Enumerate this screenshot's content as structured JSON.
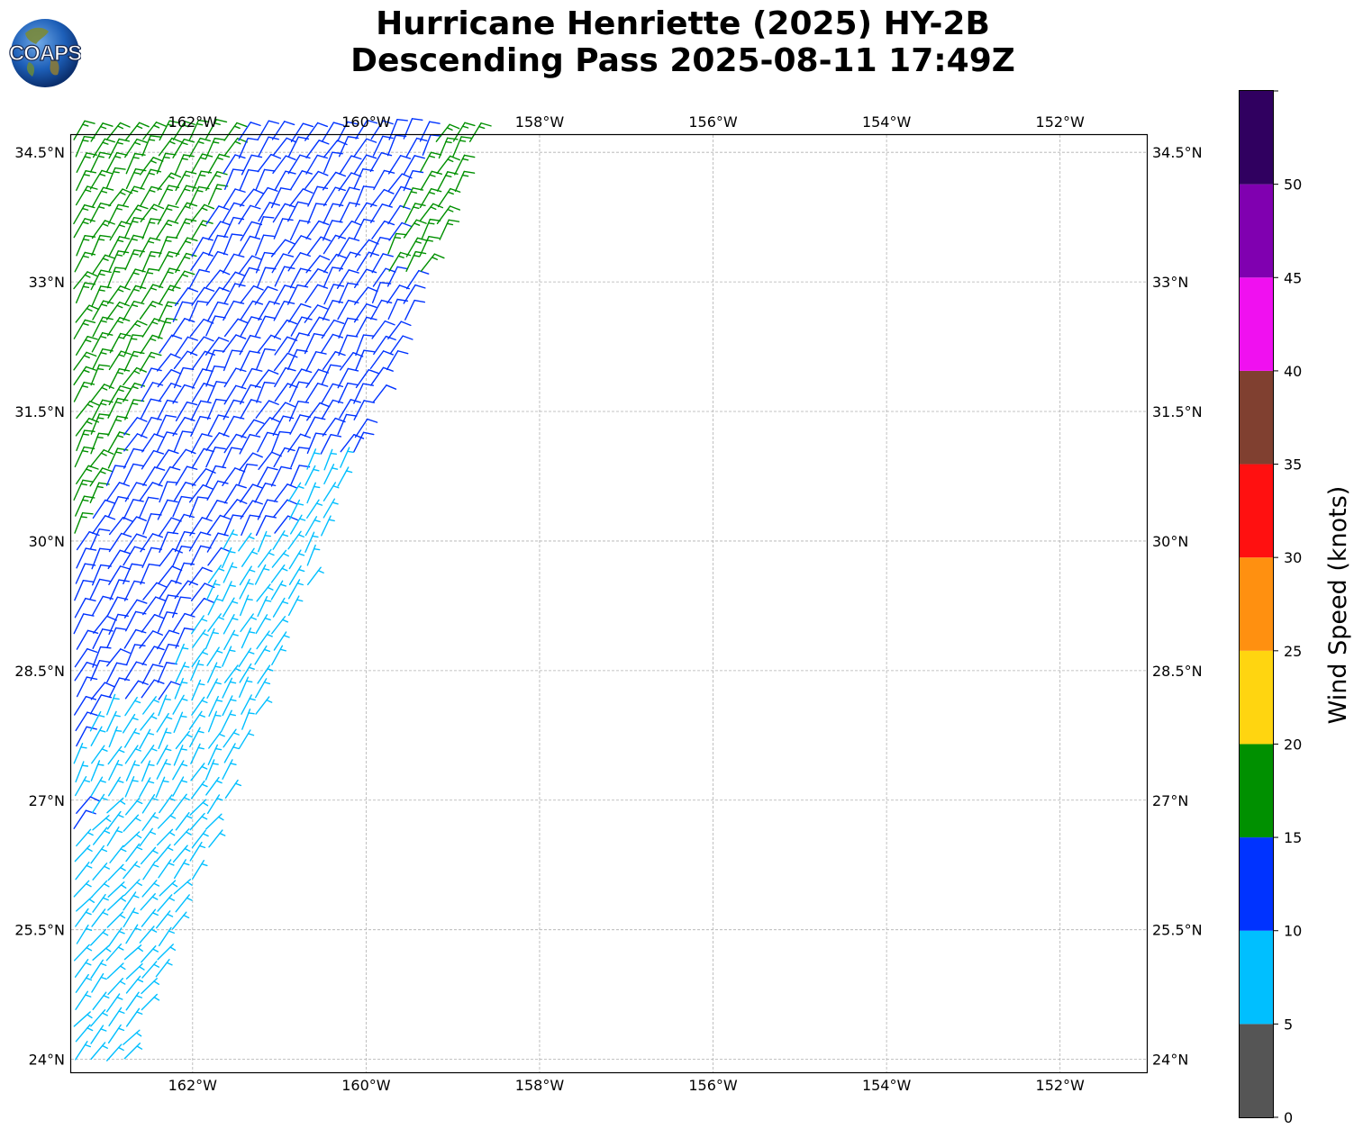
{
  "title": {
    "line1": "Hurricane Henriette (2025) HY-2B",
    "line2": "Descending Pass 2025-08-11 17:49Z"
  },
  "logo": {
    "text": "COAPS"
  },
  "map": {
    "lon_range": [
      -163.4,
      -151.0
    ],
    "lat_range": [
      23.85,
      34.7
    ],
    "lon_ticks": [
      {
        "value": -162,
        "label": "162°W"
      },
      {
        "value": -160,
        "label": "160°W"
      },
      {
        "value": -158,
        "label": "158°W"
      },
      {
        "value": -156,
        "label": "156°W"
      },
      {
        "value": -154,
        "label": "154°W"
      },
      {
        "value": -152,
        "label": "152°W"
      }
    ],
    "lat_ticks": [
      {
        "value": 34.5,
        "label": "34.5°N"
      },
      {
        "value": 33,
        "label": "33°N"
      },
      {
        "value": 31.5,
        "label": "31.5°N"
      },
      {
        "value": 30,
        "label": "30°N"
      },
      {
        "value": 28.5,
        "label": "28.5°N"
      },
      {
        "value": 27,
        "label": "27°N"
      },
      {
        "value": 25.5,
        "label": "25.5°N"
      },
      {
        "value": 24,
        "label": "24°N"
      }
    ],
    "gridlines": true,
    "swath_east_edge": [
      {
        "lat": 34.6,
        "lon": -158.75
      },
      {
        "lat": 24.0,
        "lon": -162.75
      }
    ]
  },
  "colorbar": {
    "label": "Wind Speed (knots)",
    "orientation": "vertical",
    "placement": "right",
    "bins": [
      {
        "min": 0,
        "max": 5,
        "color": "#555555"
      },
      {
        "min": 5,
        "max": 10,
        "color": "#00bfff"
      },
      {
        "min": 10,
        "max": 15,
        "color": "#0033ff"
      },
      {
        "min": 15,
        "max": 20,
        "color": "#009000"
      },
      {
        "min": 20,
        "max": 25,
        "color": "#ffd510"
      },
      {
        "min": 25,
        "max": 30,
        "color": "#ff9010"
      },
      {
        "min": 30,
        "max": 35,
        "color": "#ff1010"
      },
      {
        "min": 35,
        "max": 40,
        "color": "#804030"
      },
      {
        "min": 40,
        "max": 45,
        "color": "#f010f0"
      },
      {
        "min": 45,
        "max": 50,
        "color": "#8000b0"
      },
      {
        "min": 50,
        "max": 55,
        "color": "#300060"
      }
    ],
    "ticks": [
      {
        "value": 0,
        "label": "0"
      },
      {
        "value": 5,
        "label": "5"
      },
      {
        "value": 10,
        "label": "10"
      },
      {
        "value": 15,
        "label": "15"
      },
      {
        "value": 20,
        "label": "20"
      },
      {
        "value": 25,
        "label": "25"
      },
      {
        "value": 30,
        "label": "30"
      },
      {
        "value": 35,
        "label": "35"
      },
      {
        "value": 40,
        "label": "40"
      },
      {
        "value": 45,
        "label": "45"
      },
      {
        "value": 50,
        "label": "50"
      }
    ],
    "range": [
      0,
      55
    ]
  },
  "wind_barbs": {
    "speed_regions_by_lat": [
      {
        "lat_min": 29.9,
        "lat_max": 34.7,
        "west_speed_knots": 17,
        "east_speed_knots": 12,
        "far_east_speed_knots": 16
      },
      {
        "lat_min": 27.0,
        "lat_max": 29.9,
        "west_speed_knots": 12,
        "east_speed_knots": 8
      },
      {
        "lat_min": 23.85,
        "lat_max": 27.0,
        "west_speed_knots": 8,
        "east_speed_knots": 8
      }
    ],
    "direction_note_deg_from": 30
  }
}
